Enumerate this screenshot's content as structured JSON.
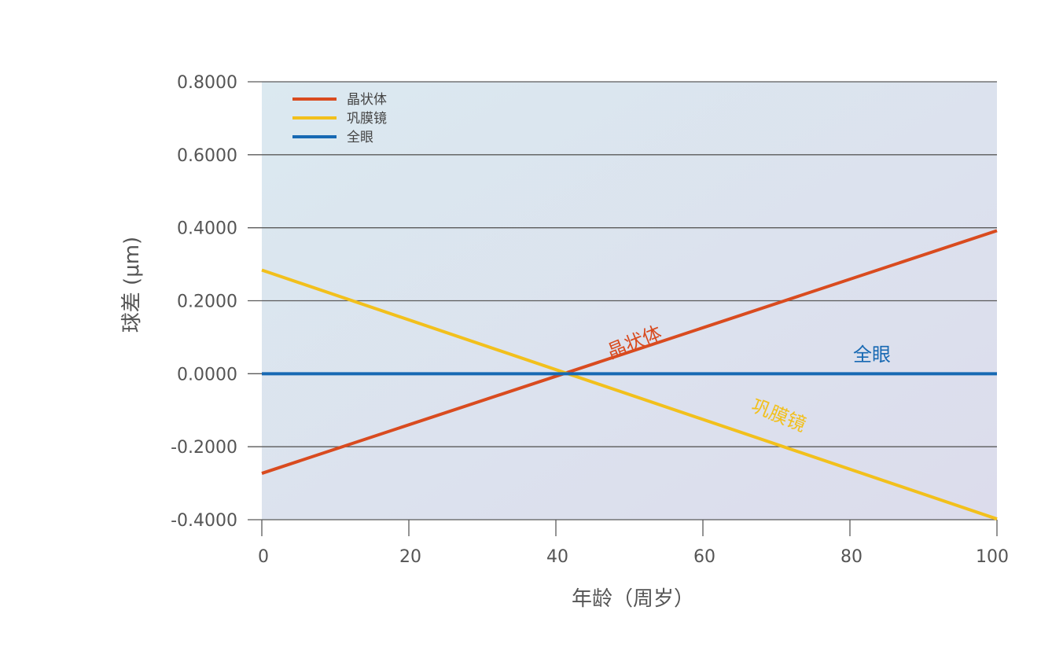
{
  "chart_data": {
    "type": "line",
    "title": "",
    "xlabel": "年龄（周岁）",
    "ylabel": "球差 (μm)",
    "xlim": [
      0,
      100
    ],
    "ylim": [
      -0.4,
      0.8
    ],
    "x_ticks": [
      0,
      20,
      40,
      60,
      80,
      100
    ],
    "x_tick_labels": [
      "0",
      "20",
      "40",
      "60",
      "80",
      "100"
    ],
    "y_ticks": [
      -0.4,
      -0.2,
      0.0,
      0.2,
      0.4,
      0.6,
      0.8
    ],
    "y_tick_labels": [
      "-0.4000",
      "-0.2000",
      "0.0000",
      "0.2000",
      "0.4000",
      "0.6000",
      "0.8000"
    ],
    "grid": "horizontal",
    "legend_position": "top-left",
    "series": [
      {
        "name": "晶状体",
        "color": "#d94b1f",
        "x": [
          0,
          100
        ],
        "y": [
          -0.273,
          0.392
        ]
      },
      {
        "name": "巩膜镜",
        "color": "#f2c01c",
        "x": [
          0,
          100
        ],
        "y": [
          0.284,
          -0.398
        ]
      },
      {
        "name": "全眼",
        "color": "#1769b3",
        "x": [
          0,
          100
        ],
        "y": [
          0.0,
          0.0
        ]
      }
    ],
    "annotations": [
      {
        "text": "晶状体",
        "color": "#d94b1f",
        "x": 51,
        "y": 0.07,
        "angle": -22
      },
      {
        "text": "全眼",
        "color": "#1769b3",
        "x": 83,
        "y": 0.035,
        "angle": 0
      },
      {
        "text": "巩膜镜",
        "color": "#f2c01c",
        "x": 70,
        "y": -0.13,
        "angle": 22
      }
    ]
  }
}
